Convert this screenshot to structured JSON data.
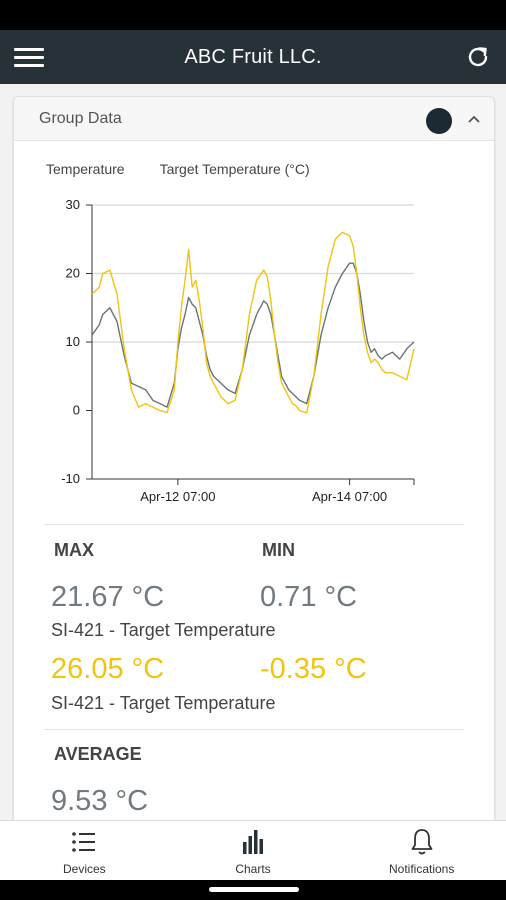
{
  "app": {
    "title": "ABC Fruit LLC."
  },
  "card": {
    "title": "Group Data",
    "legend": [
      "Temperature",
      "Target Temperature (°C)"
    ]
  },
  "chart_data": {
    "type": "line",
    "title": "",
    "xlabel": "",
    "ylabel": "",
    "ylim": [
      -10,
      30
    ],
    "yticks": [
      "30",
      "20",
      "10",
      "0",
      "-10"
    ],
    "xticks": [
      "Apr-12 07:00",
      "Apr-14 07:00"
    ],
    "grid": true,
    "x_hours_from_apr11_07": [
      0,
      2,
      3,
      5,
      7,
      9,
      11,
      13,
      15,
      17,
      19,
      21,
      23,
      24,
      25,
      26,
      27,
      28,
      29,
      30,
      31,
      32,
      33,
      34,
      36,
      38,
      40,
      42,
      44,
      46,
      48,
      49,
      50,
      51,
      52,
      53,
      54,
      55,
      56,
      57,
      58,
      60,
      62,
      64,
      66,
      68,
      70,
      72,
      73,
      74,
      75,
      76,
      77,
      78,
      79,
      80,
      81,
      82,
      84,
      86,
      88,
      90
    ],
    "series": [
      {
        "name": "Temperature",
        "color": "#6b7378",
        "values": [
          11,
          12.5,
          14,
          15,
          13,
          8,
          4,
          3.5,
          3,
          1.5,
          1,
          0.5,
          4,
          9,
          12,
          14,
          16.5,
          15.5,
          15,
          13,
          11,
          8,
          6,
          5,
          4,
          3,
          2.5,
          6,
          11,
          14,
          16,
          15.5,
          14,
          11,
          8,
          5,
          4,
          3,
          2.5,
          2,
          1.5,
          1,
          5,
          11,
          15,
          18,
          20,
          21.5,
          21.5,
          20,
          17,
          13,
          10,
          8.5,
          9,
          8,
          7.5,
          8,
          8.5,
          7.5,
          9,
          10
        ]
      },
      {
        "name": "Target Temperature",
        "color": "#f1c40f",
        "values": [
          17,
          18,
          20,
          20.5,
          17,
          9,
          3,
          0.5,
          1,
          0.5,
          0,
          -0.3,
          3,
          10,
          15,
          19,
          23.5,
          18,
          19,
          16,
          12,
          7,
          5,
          4,
          2,
          1,
          1.5,
          6,
          14,
          19,
          20.5,
          19.5,
          16,
          11,
          7,
          4,
          3,
          2,
          1,
          0.7,
          0,
          -0.35,
          5,
          14,
          21,
          25,
          26,
          25.5,
          24,
          20,
          15,
          11,
          8.5,
          7,
          7.5,
          7,
          6,
          5.5,
          5.5,
          5,
          4.5,
          9
        ]
      }
    ]
  },
  "stats": {
    "max_label": "MAX",
    "min_label": "MIN",
    "avg_label": "AVERAGE",
    "temp_max": "21.67 °C",
    "temp_min": "0.71 °C",
    "temp_caption": "SI-421 - Target Temperature",
    "target_max": "26.05 °C",
    "target_min": "-0.35 °C",
    "target_caption": "SI-421 - Target Temperature",
    "temp_avg": "9.53 °C",
    "accent_color": "#f1c40f"
  },
  "nav": {
    "devices": "Devices",
    "charts": "Charts",
    "notifications": "Notifications"
  },
  "icons": {
    "menu": "hamburger-icon",
    "refresh": "refresh-icon",
    "collapse": "chevron-up-icon",
    "devices": "list-icon",
    "charts": "bar-chart-icon",
    "notifications": "bell-icon"
  }
}
